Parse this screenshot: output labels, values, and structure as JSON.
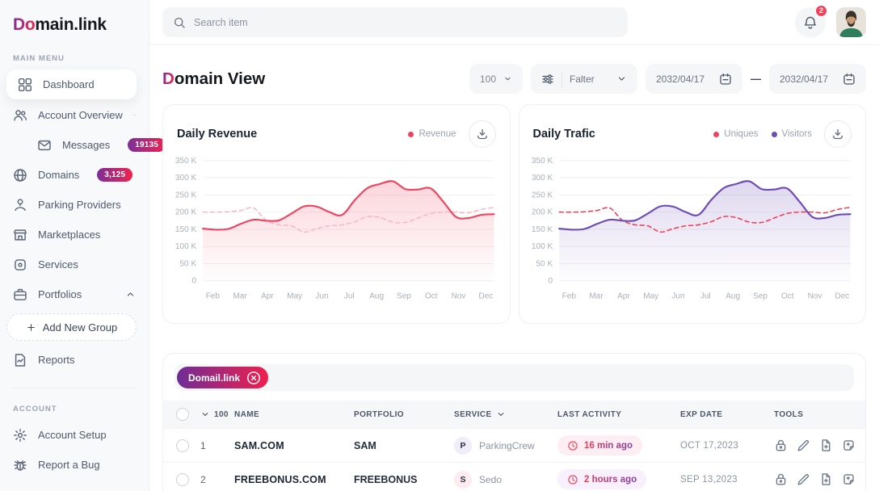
{
  "brand": {
    "name_accent": "Do",
    "name_rest": "main.link"
  },
  "sidebar": {
    "main_label": "MAIN MENU",
    "account_label": "ACCOUNT",
    "menu": [
      {
        "id": "dashboard",
        "label": "Dashboard",
        "icon": "grid-icon",
        "active": true
      },
      {
        "id": "account-overview",
        "label": "Account Overview",
        "icon": "users-icon",
        "chevron": "up"
      },
      {
        "id": "messages",
        "label": "Messages",
        "icon": "mail-icon",
        "badge": "19135",
        "indent": true
      },
      {
        "id": "domains",
        "label": "Domains",
        "icon": "globe-icon",
        "badge": "3,125",
        "chevron": "down"
      },
      {
        "id": "parking-providers",
        "label": "Parking Providers",
        "icon": "parking-icon"
      },
      {
        "id": "marketplaces",
        "label": "Marketplaces",
        "icon": "store-icon"
      },
      {
        "id": "services",
        "label": "Services",
        "icon": "service-icon"
      },
      {
        "id": "portfolios",
        "label": "Portfolios",
        "icon": "briefcase-icon",
        "chevron": "up"
      },
      {
        "id": "add-new-group",
        "label": "Add New Group",
        "icon": "plus-icon",
        "type": "dashed-button"
      },
      {
        "id": "reports",
        "label": "Reports",
        "icon": "report-icon"
      }
    ],
    "account_menu": [
      {
        "id": "account-setup",
        "label": "Account Setup",
        "icon": "gear-icon"
      },
      {
        "id": "report-a-bug",
        "label": "Report a Bug",
        "icon": "bug-icon"
      }
    ]
  },
  "topbar": {
    "search_placeholder": "Search item",
    "notification_count": "2"
  },
  "header": {
    "title_accent": "D",
    "title_rest": "omain View",
    "page_size": "100",
    "filter_label": "Falter",
    "date_from": "2032/04/17",
    "date_separator": "—",
    "date_to": "2032/04/17"
  },
  "chart_data": [
    {
      "type": "area",
      "title": "Daily Revenue",
      "unit": "K",
      "legend_position": "top-right",
      "grid": "horizontal",
      "x_labels": [
        "Feb",
        "Mar",
        "Apr",
        "May",
        "Jun",
        "Jul",
        "Aug",
        "Sep",
        "Oct",
        "Nov",
        "Dec"
      ],
      "y_tick_labels": [
        "350 K",
        "300 K",
        "250 K",
        "200 K",
        "150 K",
        "100 K",
        "50 K",
        "0"
      ],
      "ylim": [
        0,
        350
      ],
      "legend": [
        {
          "label": "Revenue",
          "color": "#f0425d"
        }
      ],
      "series": [
        {
          "name": "Revenue",
          "style": "solid",
          "area_fill": true,
          "color": "#f0445e",
          "values": [
            152,
            149,
            151,
            166,
            178,
            175,
            176,
            196,
            217,
            216,
            200,
            192,
            235,
            270,
            282,
            290,
            267,
            266,
            269,
            230,
            186,
            183,
            192,
            194
          ]
        },
        {
          "name": "Revenue reference",
          "style": "dashed",
          "color": "#f7b9c5",
          "values": [
            200,
            200,
            201,
            205,
            212,
            176,
            163,
            160,
            142,
            152,
            160,
            163,
            172,
            187,
            184,
            171,
            170,
            183,
            196,
            200,
            200,
            198,
            208,
            214
          ]
        }
      ]
    },
    {
      "type": "area",
      "title": "Daily Trafic",
      "unit": "K",
      "legend_position": "top-right",
      "grid": "horizontal",
      "x_labels": [
        "Feb",
        "Mar",
        "Apr",
        "May",
        "Jun",
        "Jul",
        "Aug",
        "Sep",
        "Oct",
        "Nov",
        "Dec"
      ],
      "y_tick_labels": [
        "350 K",
        "300 K",
        "250 K",
        "200 K",
        "150 K",
        "100 K",
        "50 K",
        "0"
      ],
      "ylim": [
        0,
        350
      ],
      "legend": [
        {
          "label": "Uniques",
          "color": "#f0425d"
        },
        {
          "label": "Visitors",
          "color": "#6d4cb5"
        }
      ],
      "series": [
        {
          "name": "Visitors",
          "style": "solid",
          "area_fill": true,
          "color": "#6d4cb5",
          "values": [
            152,
            149,
            151,
            166,
            178,
            175,
            176,
            196,
            217,
            216,
            200,
            192,
            235,
            270,
            282,
            290,
            267,
            266,
            269,
            230,
            186,
            183,
            192,
            194
          ]
        },
        {
          "name": "Uniques",
          "style": "dashed",
          "color": "#ef4059",
          "values": [
            200,
            200,
            201,
            205,
            212,
            176,
            163,
            160,
            142,
            152,
            160,
            163,
            172,
            187,
            184,
            171,
            170,
            183,
            196,
            200,
            200,
            198,
            208,
            214
          ]
        }
      ]
    }
  ],
  "table": {
    "filter_chip": "Domail.link",
    "header_count": "100",
    "columns": [
      {
        "label": "NAME"
      },
      {
        "label": "PORTFOLIO"
      },
      {
        "label": "SERVICE",
        "sortable": true
      },
      {
        "label": "LAST ACTIVITY"
      },
      {
        "label": "EXP DATE"
      },
      {
        "label": "TOOLS"
      }
    ],
    "rows": [
      {
        "num": "1",
        "name": "SAM.COM",
        "portfolio": "SAM",
        "service_initial": "P",
        "service_initial_bg": "#f1ecfa",
        "service_name": "ParkingCrew",
        "activity": "16 min ago",
        "activity_bg": "#fdeef3",
        "exp_date": "OCT 17,2023",
        "tools": [
          "lock",
          "pencil",
          "file-plus",
          "copy-plus"
        ]
      },
      {
        "num": "2",
        "name": "FREEBONUS.COM",
        "portfolio": "FREEBONUS",
        "service_initial": "S",
        "service_initial_bg": "#fdecef",
        "service_name": "Sedo",
        "activity": "2 hours ago",
        "activity_bg": "#f8f0fc",
        "exp_date": "SEP 13,2023",
        "tools": [
          "lock",
          "pencil",
          "file-plus",
          "copy-plus"
        ]
      }
    ]
  },
  "colors": {
    "accent_red": "#f0425d",
    "accent_purple": "#6d4cb5",
    "gradient_from": "#7b2d9b",
    "gradient_to": "#ef2450"
  }
}
